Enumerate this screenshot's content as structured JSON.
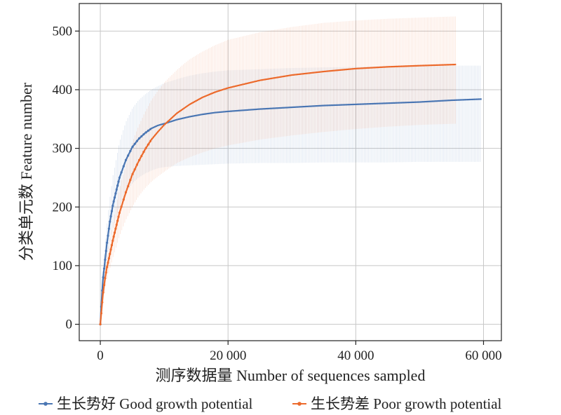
{
  "chart_data": {
    "type": "line",
    "xlabel": "测序数据量 Number of sequences sampled",
    "ylabel": "分类单元数 Feature number",
    "xlim": [
      -3300,
      62800
    ],
    "ylim": [
      -28,
      547
    ],
    "x_ticks": [
      0,
      20000,
      40000,
      60000
    ],
    "x_tick_labels": [
      "0",
      "20 000",
      "40 000",
      "60 000"
    ],
    "y_ticks": [
      0,
      100,
      200,
      300,
      400,
      500
    ],
    "y_tick_labels": [
      "0",
      "100",
      "200",
      "300",
      "400",
      "500"
    ],
    "grid": true,
    "legend_position": "bottom",
    "series": [
      {
        "name": "生长势好 Good growth potential",
        "color": "#4a76b3",
        "x": [
          0,
          200,
          400,
          700,
          1000,
          1500,
          2000,
          3000,
          4000,
          5000,
          6000,
          7000,
          8000,
          9000,
          10000,
          12000,
          14000,
          16000,
          18000,
          20000,
          25000,
          30000,
          35000,
          40000,
          45000,
          50000,
          55000,
          59700
        ],
        "y": [
          0,
          40,
          75,
          105,
          135,
          175,
          205,
          250,
          280,
          302,
          316,
          326,
          334,
          339,
          342,
          349,
          354,
          358,
          361,
          363,
          367,
          370,
          373,
          375,
          377,
          379,
          382,
          384
        ],
        "err_low": [
          0,
          30,
          60,
          85,
          110,
          140,
          165,
          200,
          225,
          240,
          250,
          257,
          262,
          266,
          268,
          270,
          271,
          272,
          273,
          274,
          275,
          275,
          276,
          276,
          276,
          277,
          277,
          277
        ],
        "err_high": [
          0,
          50,
          95,
          130,
          165,
          215,
          255,
          310,
          345,
          368,
          382,
          392,
          400,
          406,
          411,
          418,
          424,
          428,
          431,
          433,
          435,
          437,
          438,
          439,
          440,
          440,
          441,
          441
        ]
      },
      {
        "name": "生长势差 Poor growth potential",
        "color": "#ec6a2c",
        "x": [
          0,
          200,
          400,
          700,
          1000,
          1500,
          2000,
          3000,
          4000,
          5000,
          6000,
          7000,
          8000,
          9000,
          10000,
          12000,
          14000,
          16000,
          18000,
          20000,
          25000,
          30000,
          35000,
          40000,
          45000,
          50000,
          55700
        ],
        "y": [
          0,
          25,
          50,
          75,
          95,
          120,
          145,
          190,
          225,
          255,
          278,
          298,
          315,
          328,
          340,
          360,
          375,
          387,
          396,
          403,
          416,
          425,
          431,
          436,
          439,
          441,
          443
        ],
        "err_low": [
          0,
          20,
          40,
          60,
          75,
          95,
          115,
          150,
          178,
          200,
          218,
          232,
          243,
          252,
          260,
          275,
          285,
          293,
          300,
          305,
          315,
          322,
          328,
          333,
          337,
          340,
          342
        ],
        "err_high": [
          0,
          30,
          60,
          90,
          115,
          145,
          175,
          230,
          272,
          310,
          338,
          362,
          382,
          398,
          412,
          434,
          452,
          465,
          476,
          485,
          498,
          507,
          514,
          518,
          521,
          523,
          525
        ]
      }
    ]
  }
}
